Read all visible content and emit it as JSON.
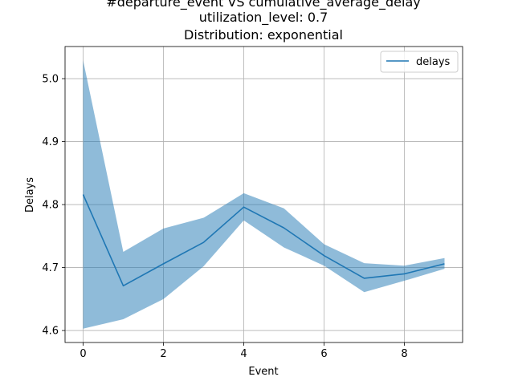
{
  "chart_data": {
    "type": "line",
    "title_lines": [
      "#departure_event VS cumulative_average_delay",
      "utilization_level: 0.7",
      "Distribution: exponential"
    ],
    "xlabel": "Event",
    "ylabel": "Delays",
    "x": [
      0,
      1,
      2,
      3,
      4,
      5,
      6,
      7,
      8,
      9
    ],
    "series": [
      {
        "name": "delays",
        "color": "#1f77b4",
        "values": [
          4.816,
          4.671,
          4.706,
          4.74,
          4.796,
          4.763,
          4.719,
          4.683,
          4.69,
          4.706
        ]
      }
    ],
    "band": {
      "color": "#1f77b4",
      "lower": [
        4.603,
        4.618,
        4.65,
        4.702,
        4.775,
        4.732,
        4.703,
        4.661,
        4.679,
        4.698
      ],
      "upper": [
        5.029,
        4.725,
        4.762,
        4.779,
        4.818,
        4.794,
        4.737,
        4.707,
        4.703,
        4.715
      ]
    },
    "xlim": [
      -0.45,
      9.45
    ],
    "ylim": [
      4.581,
      5.051
    ],
    "xticks": [
      "0",
      "2",
      "4",
      "6",
      "8"
    ],
    "yticks": [
      "4.6",
      "4.7",
      "4.8",
      "4.9",
      "5.0"
    ],
    "grid": true,
    "legend_position": "top-right"
  }
}
